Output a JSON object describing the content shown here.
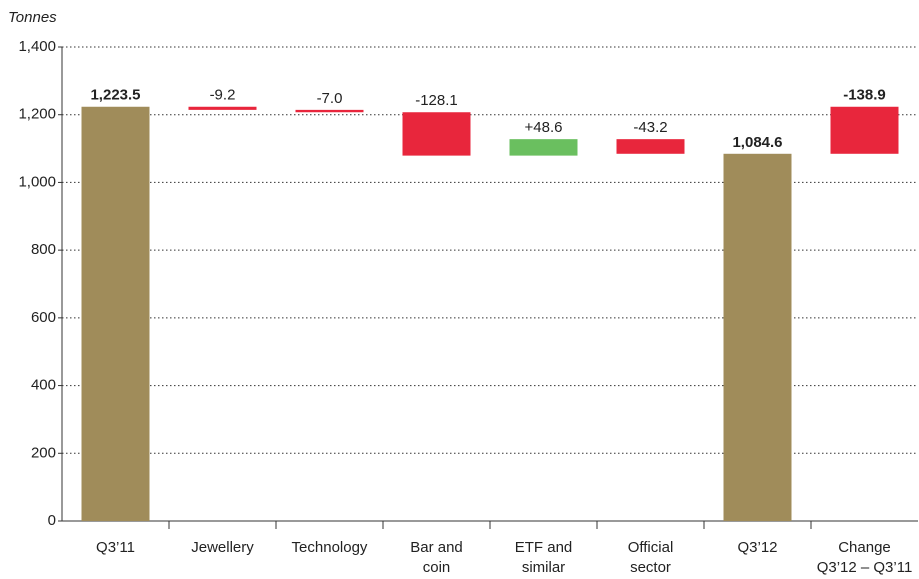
{
  "chart_data": {
    "type": "waterfall",
    "y_axis_label": "Tonnes",
    "categories": [
      "Q3’11",
      "Jewellery",
      "Technology",
      "Bar and\ncoin",
      "ETF and\nsimilar",
      "Official\nsector",
      "Q3’12",
      "Change\nQ3’12 – Q3’11"
    ],
    "values": [
      1223.5,
      -9.2,
      -7.0,
      -128.1,
      48.6,
      -43.2,
      1084.6,
      -138.9
    ],
    "value_labels": [
      "1,223.5",
      "-9.2",
      "-7.0",
      "-128.1",
      "+48.6",
      "-43.2",
      "1,084.6",
      "-138.9"
    ],
    "bar_kinds": [
      "total",
      "delta",
      "delta",
      "delta",
      "delta",
      "delta",
      "total",
      "change"
    ],
    "colors": {
      "total": "#a08c5a",
      "increase": "#6abf5f",
      "decrease": "#e8263c"
    },
    "ylim": [
      0,
      1400
    ],
    "yticks": [
      0,
      200,
      400,
      600,
      800,
      {
        "value": 1000,
        "label": "1,000"
      },
      {
        "value": 1200,
        "label": "1,200"
      },
      {
        "value": 1400,
        "label": "1,400"
      }
    ],
    "grid": true
  }
}
